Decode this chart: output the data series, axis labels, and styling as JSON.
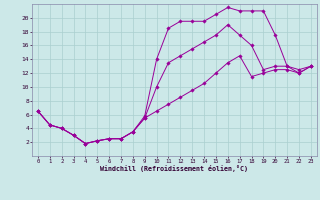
{
  "xlabel": "Windchill (Refroidissement éolien,°C)",
  "background_color": "#cce8e8",
  "line_color": "#990099",
  "grid_color": "#aacfcf",
  "xlim": [
    -0.5,
    23.5
  ],
  "ylim": [
    0,
    22
  ],
  "xticks": [
    0,
    1,
    2,
    3,
    4,
    5,
    6,
    7,
    8,
    9,
    10,
    11,
    12,
    13,
    14,
    15,
    16,
    17,
    18,
    19,
    20,
    21,
    22,
    23
  ],
  "yticks": [
    2,
    4,
    6,
    8,
    10,
    12,
    14,
    16,
    18,
    20
  ],
  "series1_x": [
    0,
    1,
    2,
    3,
    4,
    5,
    6,
    7,
    8,
    9,
    10,
    11,
    12,
    13,
    14,
    15,
    16,
    17,
    18,
    19,
    20,
    21,
    22,
    23
  ],
  "series1_y": [
    6.5,
    4.5,
    4.0,
    3.0,
    1.8,
    2.2,
    2.5,
    2.5,
    3.5,
    5.8,
    14.0,
    18.5,
    19.5,
    19.5,
    19.5,
    20.5,
    21.5,
    21.0,
    21.0,
    21.0,
    17.5,
    13.0,
    12.0,
    13.0
  ],
  "series2_x": [
    0,
    1,
    2,
    3,
    4,
    5,
    6,
    7,
    8,
    9,
    10,
    11,
    12,
    13,
    14,
    15,
    16,
    17,
    18,
    19,
    20,
    21,
    22,
    23
  ],
  "series2_y": [
    6.5,
    4.5,
    4.0,
    3.0,
    1.8,
    2.2,
    2.5,
    2.5,
    3.5,
    5.5,
    10.0,
    13.5,
    14.5,
    15.5,
    16.5,
    17.5,
    19.0,
    17.5,
    16.0,
    12.5,
    13.0,
    13.0,
    12.5,
    13.0
  ],
  "series3_x": [
    0,
    1,
    2,
    3,
    4,
    5,
    6,
    7,
    8,
    9,
    10,
    11,
    12,
    13,
    14,
    15,
    16,
    17,
    18,
    19,
    20,
    21,
    22,
    23
  ],
  "series3_y": [
    6.5,
    4.5,
    4.0,
    3.0,
    1.8,
    2.2,
    2.5,
    2.5,
    3.5,
    5.5,
    6.5,
    7.5,
    8.5,
    9.5,
    10.5,
    12.0,
    13.5,
    14.5,
    11.5,
    12.0,
    12.5,
    12.5,
    12.0,
    13.0
  ]
}
